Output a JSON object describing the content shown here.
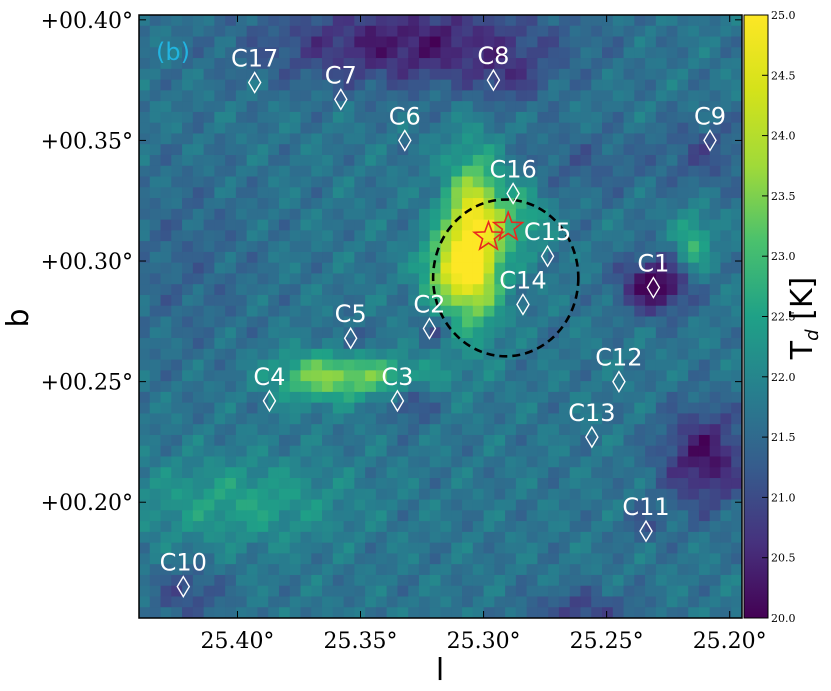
{
  "chart_data": {
    "type": "heatmap",
    "panel_label": "(b)",
    "xlabel": "l",
    "ylabel": "b",
    "xlim": [
      25.44,
      25.195
    ],
    "ylim": [
      0.152,
      0.402
    ],
    "x_ticks": [
      {
        "value": 25.4,
        "label": "25.40°"
      },
      {
        "value": 25.35,
        "label": "25.35°"
      },
      {
        "value": 25.3,
        "label": "25.30°"
      },
      {
        "value": 25.25,
        "label": "25.25°"
      },
      {
        "value": 25.2,
        "label": "25.20°"
      }
    ],
    "y_ticks": [
      {
        "value": 0.4,
        "label": "+00.40°"
      },
      {
        "value": 0.35,
        "label": "+00.35°"
      },
      {
        "value": 0.3,
        "label": "+00.30°"
      },
      {
        "value": 0.25,
        "label": "+00.25°"
      },
      {
        "value": 0.2,
        "label": "+00.20°"
      }
    ],
    "colorbar": {
      "label": "T",
      "label_sub": "d",
      "label_unit": " [K]",
      "range": [
        20.0,
        25.0
      ],
      "ticks": [
        "20.0",
        "20.5",
        "21.0",
        "21.5",
        "22.0",
        "22.5",
        "23.0",
        "23.5",
        "24.0",
        "24.5",
        "25.0"
      ]
    },
    "background_value": 21.7,
    "features": [
      {
        "l": 25.304,
        "b": 0.308,
        "sl": 0.008,
        "sb": 0.022,
        "amp": 3.6
      },
      {
        "l": 25.315,
        "b": 0.296,
        "sl": 0.008,
        "sb": 0.01,
        "amp": 1.6
      },
      {
        "l": 25.285,
        "b": 0.318,
        "sl": 0.008,
        "sb": 0.01,
        "amp": 1.0
      },
      {
        "l": 25.35,
        "b": 0.252,
        "sl": 0.02,
        "sb": 0.006,
        "amp": 1.5
      },
      {
        "l": 25.37,
        "b": 0.252,
        "sl": 0.012,
        "sb": 0.008,
        "amp": 0.8
      },
      {
        "l": 25.215,
        "b": 0.307,
        "sl": 0.005,
        "sb": 0.009,
        "amp": 1.2
      },
      {
        "l": 25.4,
        "b": 0.2,
        "sl": 0.03,
        "sb": 0.012,
        "amp": 0.8
      },
      {
        "l": 25.42,
        "b": 0.3,
        "sl": 0.02,
        "sb": 0.03,
        "amp": -0.3
      },
      {
        "l": 25.23,
        "b": 0.29,
        "sl": 0.01,
        "sb": 0.008,
        "amp": -1.8
      },
      {
        "l": 25.21,
        "b": 0.218,
        "sl": 0.012,
        "sb": 0.014,
        "amp": -1.5
      },
      {
        "l": 25.33,
        "b": 0.39,
        "sl": 0.04,
        "sb": 0.012,
        "amp": -1.4
      },
      {
        "l": 25.29,
        "b": 0.375,
        "sl": 0.01,
        "sb": 0.008,
        "amp": -0.6
      },
      {
        "l": 25.33,
        "b": 0.242,
        "sl": 0.006,
        "sb": 0.006,
        "amp": -0.9
      },
      {
        "l": 25.354,
        "b": 0.268,
        "sl": 0.004,
        "sb": 0.004,
        "amp": -0.7
      },
      {
        "l": 25.32,
        "b": 0.272,
        "sl": 0.005,
        "sb": 0.004,
        "amp": -0.6
      },
      {
        "l": 25.42,
        "b": 0.162,
        "sl": 0.01,
        "sb": 0.008,
        "amp": -0.7
      },
      {
        "l": 25.26,
        "b": 0.155,
        "sl": 0.015,
        "sb": 0.006,
        "amp": -0.8
      },
      {
        "l": 25.21,
        "b": 0.345,
        "sl": 0.012,
        "sb": 0.01,
        "amp": -0.6
      },
      {
        "l": 25.26,
        "b": 0.34,
        "sl": 0.02,
        "sb": 0.01,
        "amp": -0.4
      },
      {
        "l": 25.235,
        "b": 0.19,
        "sl": 0.006,
        "sb": 0.005,
        "amp": -0.5
      }
    ],
    "clumps": [
      {
        "label": "C1",
        "l": 25.231,
        "b": 0.289
      },
      {
        "label": "C2",
        "l": 25.322,
        "b": 0.272
      },
      {
        "label": "C3",
        "l": 25.335,
        "b": 0.242
      },
      {
        "label": "C4",
        "l": 25.387,
        "b": 0.242
      },
      {
        "label": "C5",
        "l": 25.354,
        "b": 0.268
      },
      {
        "label": "C6",
        "l": 25.332,
        "b": 0.35
      },
      {
        "label": "C7",
        "l": 25.358,
        "b": 0.367
      },
      {
        "label": "C8",
        "l": 25.296,
        "b": 0.375
      },
      {
        "label": "C9",
        "l": 25.208,
        "b": 0.35
      },
      {
        "label": "C10",
        "l": 25.422,
        "b": 0.165
      },
      {
        "label": "C11",
        "l": 25.234,
        "b": 0.188
      },
      {
        "label": "C12",
        "l": 25.245,
        "b": 0.25
      },
      {
        "label": "C13",
        "l": 25.256,
        "b": 0.227
      },
      {
        "label": "C14",
        "l": 25.284,
        "b": 0.282
      },
      {
        "label": "C15",
        "l": 25.274,
        "b": 0.302
      },
      {
        "label": "C16",
        "l": 25.288,
        "b": 0.328
      },
      {
        "label": "C17",
        "l": 25.393,
        "b": 0.374
      }
    ],
    "stars": [
      {
        "l": 25.298,
        "b": 0.31
      },
      {
        "l": 25.29,
        "b": 0.314
      }
    ],
    "ellipse": {
      "l": 25.291,
      "b": 0.293,
      "rl": 0.0295,
      "rb": 0.0325
    },
    "colors": {
      "clump_marker": "#ffffff",
      "star": "#e8281e",
      "ellipse": "#000000",
      "panel_label": "#22b4e0"
    }
  }
}
